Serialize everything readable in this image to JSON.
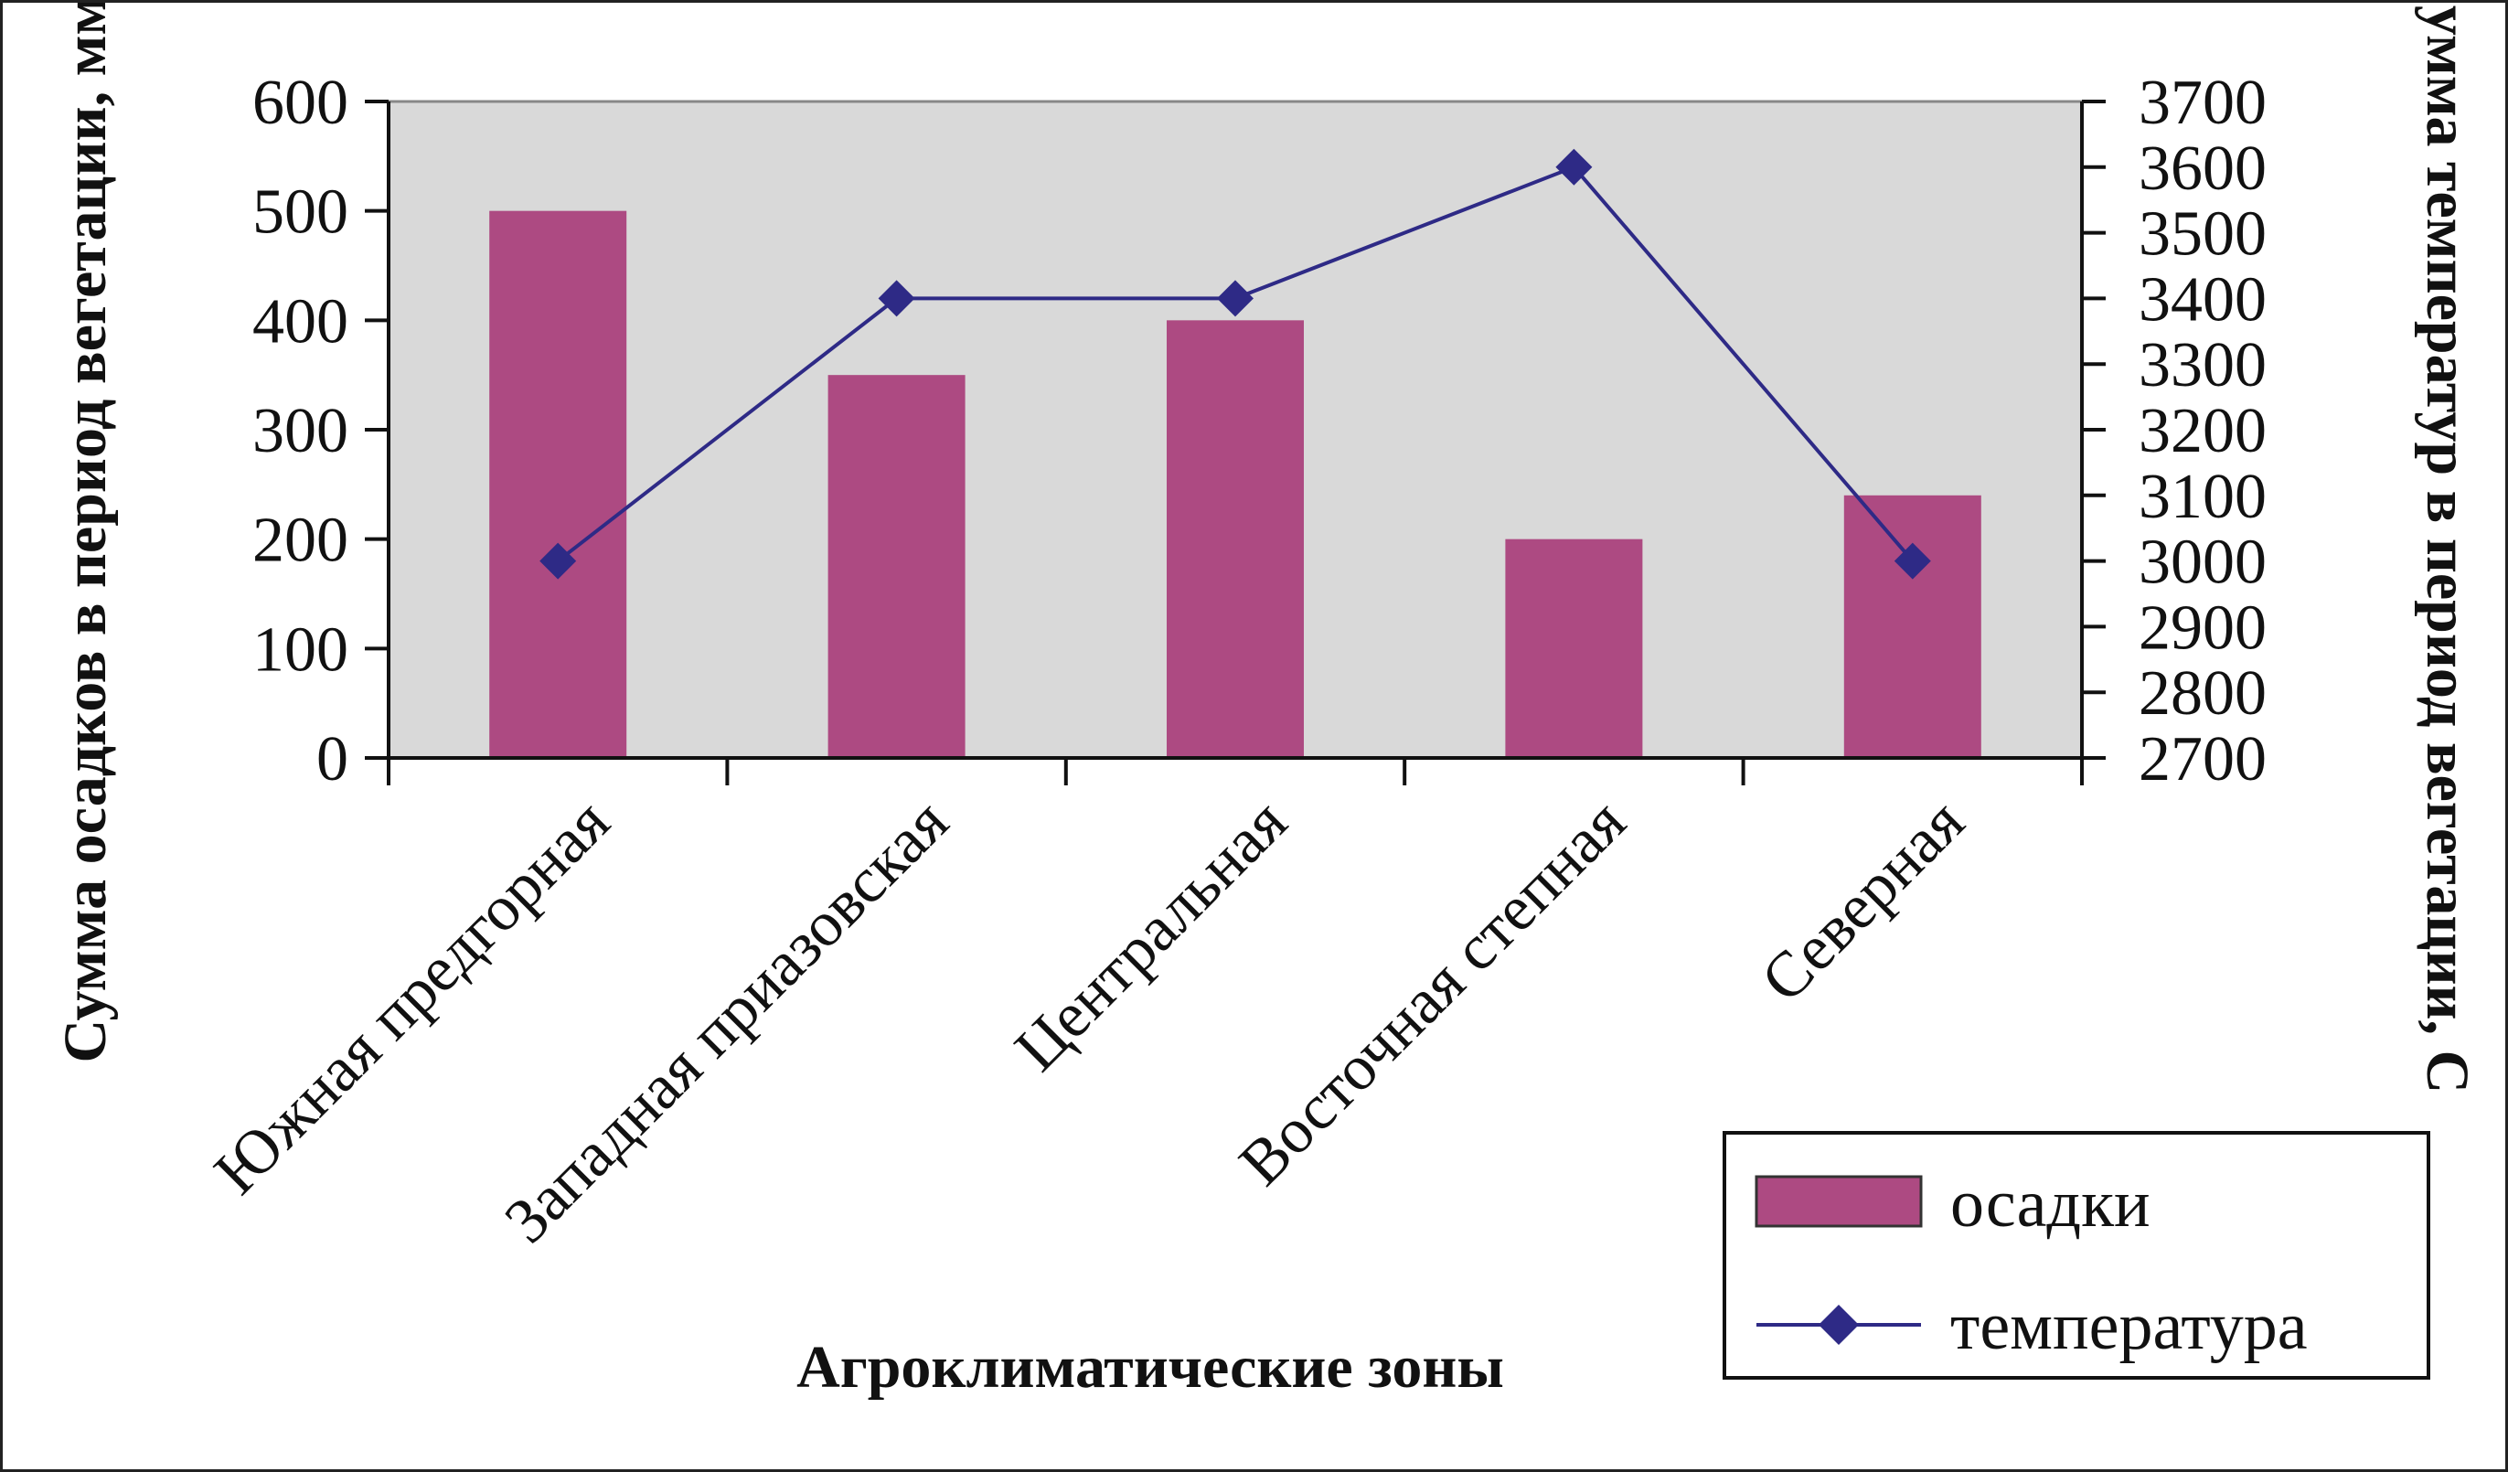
{
  "chart_data": {
    "type": "bar",
    "categories": [
      "Южная предгорная",
      "Западная приазовская",
      "Центральная",
      "Восточная степная",
      "Северная"
    ],
    "series": [
      {
        "name": "осадки",
        "type": "bar",
        "axis": "left",
        "values": [
          500,
          350,
          400,
          200,
          240
        ],
        "color": "#AD4A82"
      },
      {
        "name": "температура",
        "type": "line",
        "axis": "right",
        "values": [
          3000,
          3400,
          3400,
          3600,
          3000
        ],
        "color": "#2E2A86"
      }
    ],
    "xlabel": "Агроклиматические зоны",
    "ylabel": "Сумма осадков в период вегетации, мм",
    "ylabel_right": "Сумма температур в период вегетации, С",
    "ylim": [
      0,
      600
    ],
    "ylim_right": [
      2700,
      3700
    ],
    "yticks": [
      "0",
      "100",
      "200",
      "300",
      "400",
      "500",
      "600"
    ],
    "yticks_right": [
      "2700",
      "2800",
      "2900",
      "3000",
      "3100",
      "3200",
      "3300",
      "3400",
      "3500",
      "3600",
      "3700"
    ],
    "grid": false,
    "legend_position": "bottom-right",
    "plot_background": "#D9D9D9"
  }
}
